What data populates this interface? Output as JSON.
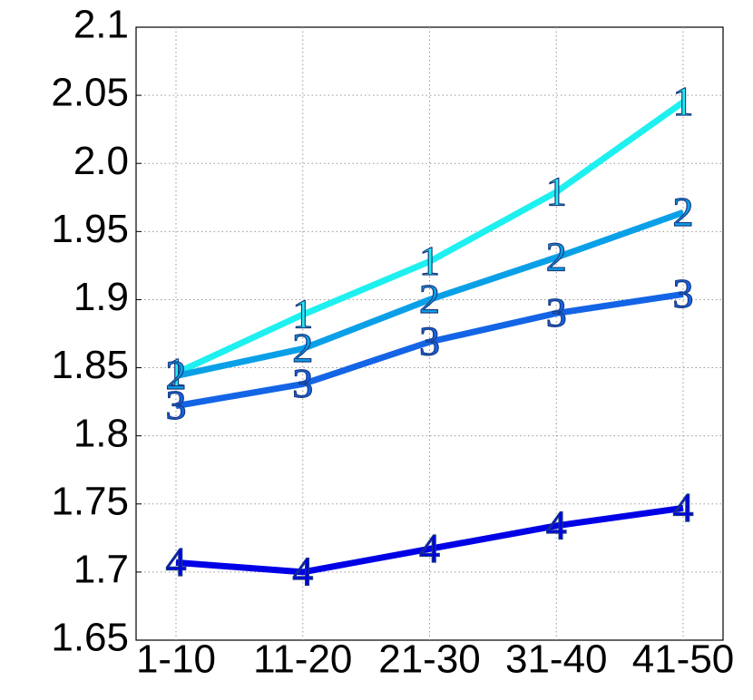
{
  "chart_data": {
    "type": "line",
    "categories": [
      "1-10",
      "11-20",
      "21-30",
      "31-40",
      "41-50"
    ],
    "series": [
      {
        "name": "1",
        "color": "#1ef0f0",
        "values": [
          1.846,
          1.889,
          1.928,
          1.979,
          2.045
        ]
      },
      {
        "name": "2",
        "color": "#0aa0e8",
        "values": [
          1.844,
          1.864,
          1.9,
          1.931,
          1.964
        ]
      },
      {
        "name": "3",
        "color": "#1464e6",
        "values": [
          1.822,
          1.838,
          1.869,
          1.89,
          1.904
        ]
      },
      {
        "name": "4",
        "color": "#0000e6",
        "values": [
          1.707,
          1.7,
          1.717,
          1.734,
          1.747
        ]
      }
    ],
    "ylim": [
      1.65,
      2.1
    ],
    "yticks": [
      1.65,
      1.7,
      1.75,
      1.8,
      1.85,
      1.9,
      1.95,
      {
        "value": 2,
        "label": "2.0"
      },
      2.05,
      2.1
    ],
    "grid": true
  }
}
